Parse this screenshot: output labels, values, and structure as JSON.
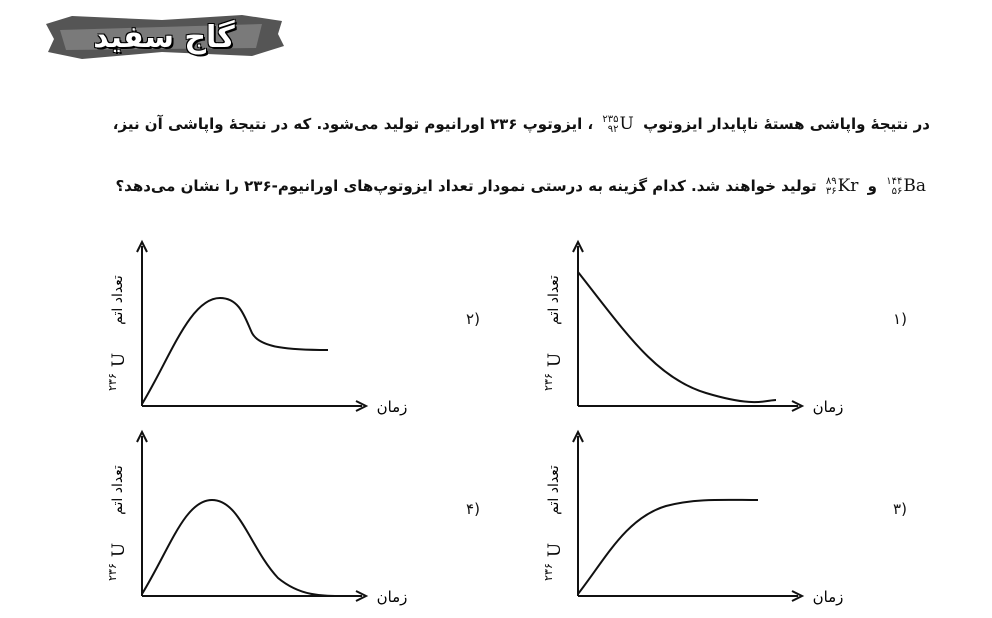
{
  "logo": {
    "text": "گاج سفید"
  },
  "question": {
    "line1_a": "در نتیجهٔ واپاشی هستهٔ ناپایدار ایزوتوپ",
    "line1_b": "، ایزوتوپ ۲۳۶ اورانیوم تولید می‌شود. که در نتیجهٔ واپاشی آن نیز،",
    "line2_a": "و",
    "line2_b": "تولید خواهند شد. کدام گزینه به درستی نمودار تعداد ایزوتوپ‌های اورانیوم-۲۳۶ را نشان می‌دهد؟",
    "iso_u": {
      "symbol": "U",
      "mass": "۲۳۵",
      "atomic": "۹۲"
    },
    "iso_ba": {
      "symbol": "Ba",
      "mass": "۱۴۴",
      "atomic": "۵۶"
    },
    "iso_kr": {
      "symbol": "Kr",
      "mass": "۸۹",
      "atomic": "۳۶"
    }
  },
  "graphs": [
    {
      "option": "(۱",
      "shape": "decay",
      "xlabel": "زمان",
      "ylabel_text": "تعداد اتم",
      "ylabel_sym": "U",
      "ylabel_mass": "۲۳۶"
    },
    {
      "option": "(۲",
      "shape": "peak-plateau",
      "xlabel": "زمان",
      "ylabel_text": "تعداد اتم",
      "ylabel_sym": "U",
      "ylabel_mass": "۲۳۶"
    },
    {
      "option": "(۳",
      "shape": "saturation",
      "xlabel": "زمان",
      "ylabel_text": "تعداد اتم",
      "ylabel_sym": "U",
      "ylabel_mass": "۲۳۶"
    },
    {
      "option": "(۴",
      "shape": "peak-decay",
      "xlabel": "زمان",
      "ylabel_text": "تعداد اتم",
      "ylabel_sym": "U",
      "ylabel_mass": "۲۳۶"
    }
  ]
}
